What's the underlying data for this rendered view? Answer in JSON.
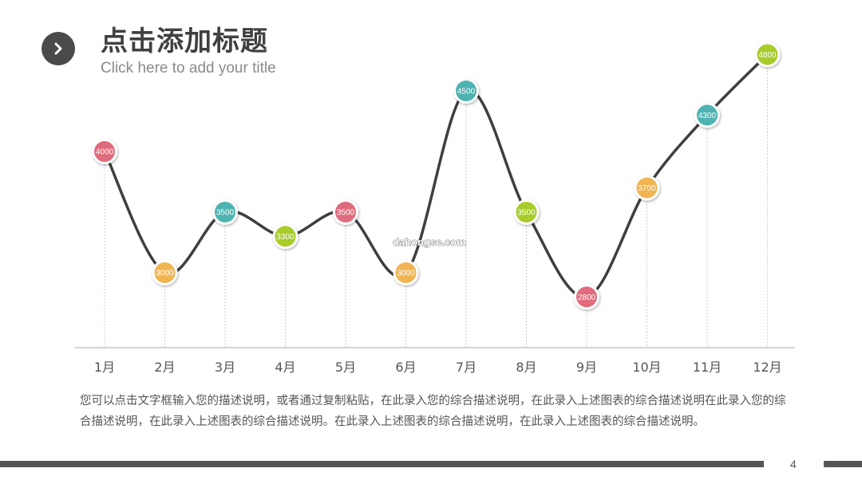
{
  "header": {
    "title": "点击添加标题",
    "subtitle": "Click here to add your title",
    "badge_icon": "chevron-right-icon"
  },
  "chart_data": {
    "type": "line",
    "categories": [
      "1月",
      "2月",
      "3月",
      "4月",
      "5月",
      "6月",
      "7月",
      "8月",
      "9月",
      "10月",
      "11月",
      "12月"
    ],
    "values": [
      4000,
      3000,
      3500,
      3300,
      3500,
      3000,
      4500,
      3500,
      2800,
      3700,
      4300,
      4800
    ],
    "point_colors": [
      "#e06b7d",
      "#f0b453",
      "#4db3b0",
      "#a8cc2a",
      "#e06b7d",
      "#f0b453",
      "#4db3b0",
      "#a8cc2a",
      "#e06b7d",
      "#f0b453",
      "#4db3b0",
      "#a8cc2a"
    ],
    "line_color": "#3f3f3f",
    "data_labels": true,
    "grid": false,
    "title": "",
    "xlabel": "",
    "ylabel": ""
  },
  "watermark": "dahongse.com",
  "description": "您可以点击文字框输入您的描述说明，或者通过复制粘贴，在此录入您的综合描述说明，在此录入上述图表的综合描述说明在此录入您的综合描述说明，在此录入上述图表的综合描述说明。在此录入上述图表的综合描述说明，在此录入上述图表的综合描述说明。",
  "footer": {
    "page_number": "4"
  }
}
